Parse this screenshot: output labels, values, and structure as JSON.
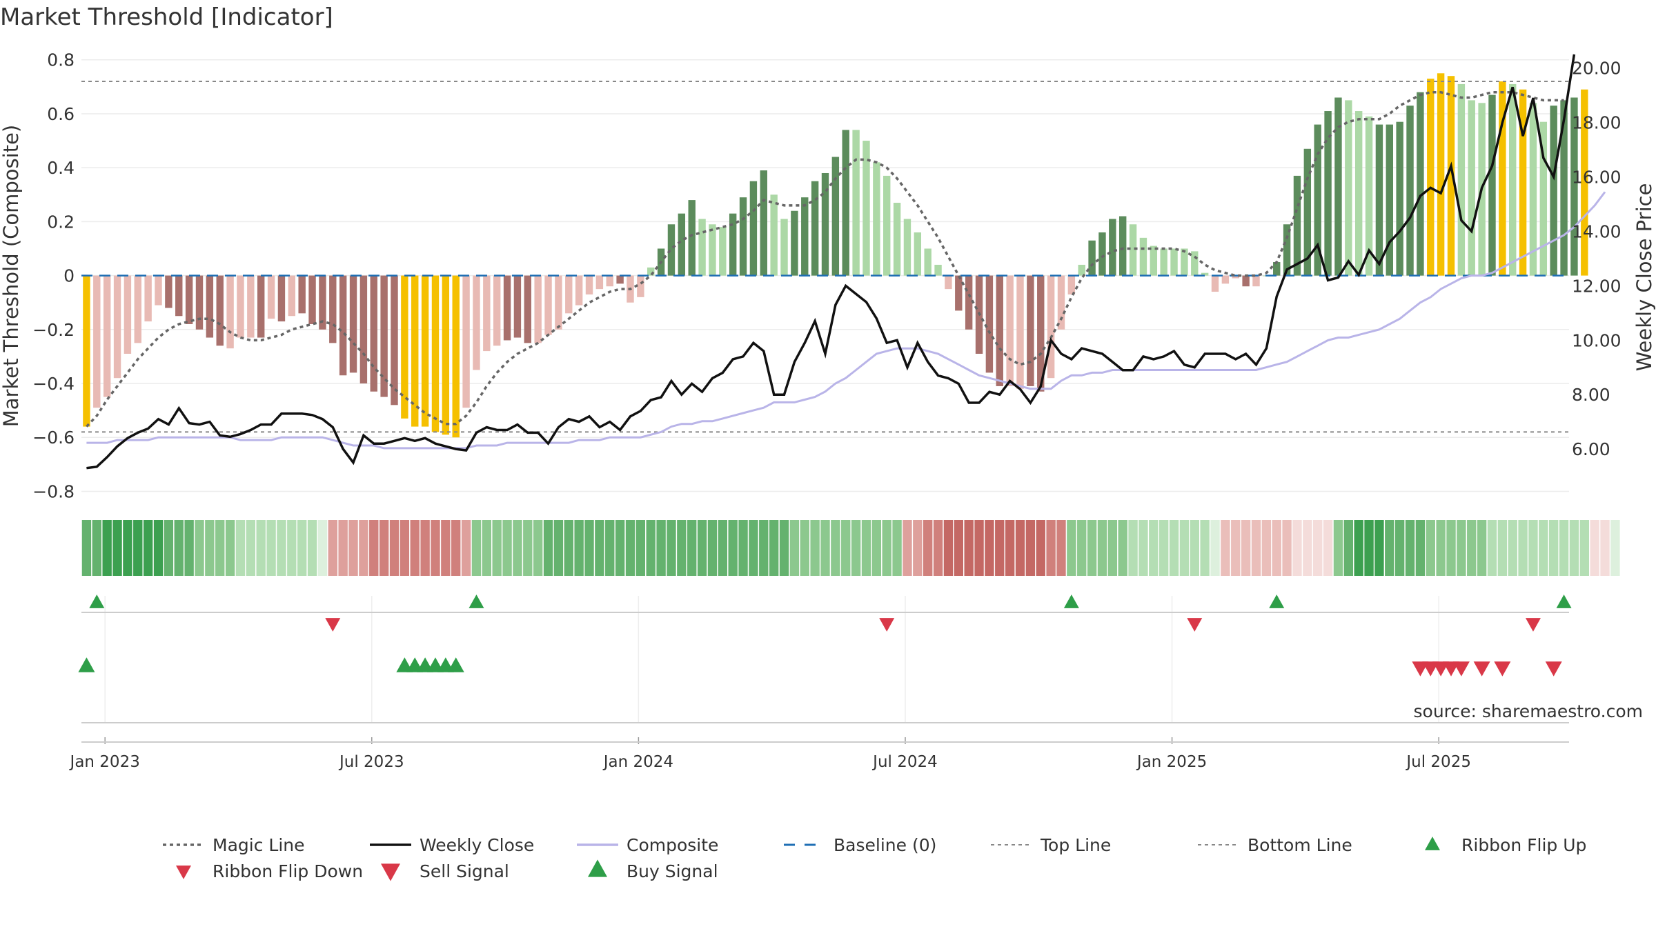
{
  "chart_data": {
    "type": "bar",
    "title": "Market Threshold [Indicator]",
    "ylabel_left": "Market Threshold (Composite)",
    "ylabel_right": "Weekly Close Price",
    "source_text": "source: sharemaestro.com",
    "ylim_left": [
      -0.85,
      0.83
    ],
    "ylim_right": [
      3.95,
      20.6
    ],
    "yticks_left": [
      {
        "v": 0.8,
        "label": "0.8"
      },
      {
        "v": 0.6,
        "label": "0.6"
      },
      {
        "v": 0.4,
        "label": "0.4"
      },
      {
        "v": 0.2,
        "label": "0.2"
      },
      {
        "v": 0,
        "label": "0"
      },
      {
        "v": -0.2,
        "label": "−0.2"
      },
      {
        "v": -0.4,
        "label": "−0.4"
      },
      {
        "v": -0.6,
        "label": "−0.6"
      },
      {
        "v": -0.8,
        "label": "−0.8"
      }
    ],
    "yticks_right": [
      {
        "v": 20,
        "label": "20.00"
      },
      {
        "v": 18,
        "label": "18.00"
      },
      {
        "v": 16,
        "label": "16.00"
      },
      {
        "v": 14,
        "label": "14.00"
      },
      {
        "v": 12,
        "label": "12.00"
      },
      {
        "v": 10,
        "label": "10.00"
      },
      {
        "v": 8,
        "label": "8.00"
      },
      {
        "v": 6,
        "label": "6.00"
      }
    ],
    "xticks": [
      {
        "i": 2,
        "label": "Jan 2023"
      },
      {
        "i": 28,
        "label": "Jul 2023"
      },
      {
        "i": 54,
        "label": "Jan 2024"
      },
      {
        "i": 80,
        "label": "Jul 2024"
      },
      {
        "i": 106,
        "label": "Jan 2025"
      },
      {
        "i": 132,
        "label": "Jul 2025"
      }
    ],
    "weeks": 145,
    "top_line": 0.72,
    "bottom_line": -0.58,
    "colors": {
      "gold": "#f5c000",
      "dark_green": "#5c8c5c",
      "light_green": "#acd8a6",
      "dark_red": "#a8706c",
      "light_red": "#e8bab4",
      "weekly_close": "#111111",
      "composite": "#b9b4e8",
      "magic": "#666666",
      "baseline": "#1f6fb4",
      "threshold": "#888888",
      "up_triangle": "#2e9e48",
      "down_triangle": "#d93848"
    },
    "composite_bars": [
      -0.56,
      -0.49,
      -0.45,
      -0.38,
      -0.29,
      -0.25,
      -0.17,
      -0.11,
      -0.12,
      -0.15,
      -0.18,
      -0.2,
      -0.23,
      -0.26,
      -0.27,
      -0.23,
      -0.23,
      -0.23,
      -0.16,
      -0.17,
      -0.15,
      -0.14,
      -0.18,
      -0.2,
      -0.25,
      -0.37,
      -0.36,
      -0.4,
      -0.43,
      -0.45,
      -0.48,
      -0.53,
      -0.56,
      -0.56,
      -0.58,
      -0.59,
      -0.6,
      -0.49,
      -0.35,
      -0.28,
      -0.26,
      -0.24,
      -0.23,
      -0.25,
      -0.25,
      -0.22,
      -0.2,
      -0.14,
      -0.11,
      -0.07,
      -0.05,
      -0.04,
      -0.03,
      -0.1,
      -0.08,
      0.03,
      0.1,
      0.19,
      0.23,
      0.28,
      0.21,
      0.19,
      0.18,
      0.23,
      0.29,
      0.35,
      0.39,
      0.3,
      0.21,
      0.24,
      0.29,
      0.35,
      0.38,
      0.44,
      0.54,
      0.54,
      0.5,
      0.42,
      0.37,
      0.27,
      0.21,
      0.16,
      0.1,
      0.04,
      -0.05,
      -0.13,
      -0.2,
      -0.29,
      -0.36,
      -0.41,
      -0.41,
      -0.42,
      -0.41,
      -0.43,
      -0.38,
      -0.2,
      -0.07,
      0.04,
      0.13,
      0.16,
      0.21,
      0.22,
      0.19,
      0.14,
      0.11,
      0.1,
      0.1,
      0.1,
      0.09,
      0.01,
      -0.06,
      -0.03,
      -0.01,
      -0.04,
      -0.04,
      0.0,
      0.05,
      0.19,
      0.37,
      0.47,
      0.56,
      0.61,
      0.66,
      0.65,
      0.61,
      0.59,
      0.56,
      0.56,
      0.57,
      0.63,
      0.68,
      0.73,
      0.75,
      0.74,
      0.71,
      0.65,
      0.64,
      0.67,
      0.72,
      0.71,
      0.69,
      0.64,
      0.57,
      0.63,
      0.65,
      0.66,
      0.69
    ],
    "bar_colors": [
      "gold",
      "light_red",
      "light_red",
      "light_red",
      "light_red",
      "light_red",
      "light_red",
      "light_red",
      "dark_red",
      "dark_red",
      "dark_red",
      "dark_red",
      "dark_red",
      "dark_red",
      "light_red",
      "light_red",
      "light_red",
      "dark_red",
      "light_red",
      "dark_red",
      "light_red",
      "dark_red",
      "dark_red",
      "dark_red",
      "dark_red",
      "dark_red",
      "dark_red",
      "dark_red",
      "dark_red",
      "dark_red",
      "dark_red",
      "gold",
      "gold",
      "gold",
      "gold",
      "gold",
      "gold",
      "light_red",
      "light_red",
      "light_red",
      "light_red",
      "dark_red",
      "dark_red",
      "dark_red",
      "light_red",
      "light_red",
      "light_red",
      "light_red",
      "light_red",
      "light_red",
      "light_red",
      "light_red",
      "dark_red",
      "light_red",
      "light_red",
      "light_green",
      "dark_green",
      "dark_green",
      "dark_green",
      "dark_green",
      "light_green",
      "light_green",
      "light_green",
      "dark_green",
      "dark_green",
      "dark_green",
      "dark_green",
      "light_green",
      "light_green",
      "dark_green",
      "dark_green",
      "dark_green",
      "dark_green",
      "dark_green",
      "dark_green",
      "light_green",
      "light_green",
      "light_green",
      "light_green",
      "light_green",
      "light_green",
      "light_green",
      "light_green",
      "light_green",
      "light_red",
      "dark_red",
      "dark_red",
      "dark_red",
      "dark_red",
      "dark_red",
      "light_red",
      "light_red",
      "dark_red",
      "dark_red",
      "light_red",
      "light_red",
      "light_red",
      "light_green",
      "dark_green",
      "dark_green",
      "dark_green",
      "dark_green",
      "light_green",
      "light_green",
      "light_green",
      "light_green",
      "light_green",
      "light_green",
      "light_green",
      "light_green",
      "light_red",
      "light_red",
      "light_red",
      "dark_red",
      "light_red",
      "light_green",
      "dark_green",
      "dark_green",
      "dark_green",
      "dark_green",
      "dark_green",
      "dark_green",
      "dark_green",
      "light_green",
      "light_green",
      "light_green",
      "dark_green",
      "dark_green",
      "dark_green",
      "dark_green",
      "dark_green",
      "gold",
      "gold",
      "gold",
      "light_green",
      "light_green",
      "light_green",
      "dark_green",
      "gold",
      "light_green",
      "gold",
      "light_green",
      "light_green",
      "dark_green",
      "dark_green",
      "dark_green",
      "gold"
    ],
    "weekly_close": [
      5.3,
      5.35,
      5.7,
      6.1,
      6.4,
      6.6,
      6.75,
      7.1,
      6.9,
      7.5,
      6.95,
      6.9,
      7.0,
      6.5,
      6.45,
      6.55,
      6.7,
      6.9,
      6.9,
      7.3,
      7.3,
      7.3,
      7.25,
      7.1,
      6.8,
      6.0,
      5.5,
      6.5,
      6.2,
      6.2,
      6.3,
      6.4,
      6.3,
      6.4,
      6.2,
      6.1,
      6.0,
      5.95,
      6.6,
      6.8,
      6.7,
      6.7,
      6.9,
      6.6,
      6.6,
      6.2,
      6.8,
      7.1,
      7.0,
      7.2,
      6.8,
      7.0,
      6.7,
      7.2,
      7.4,
      7.8,
      7.9,
      8.5,
      8.0,
      8.4,
      8.1,
      8.6,
      8.8,
      9.3,
      9.4,
      9.9,
      9.6,
      8.0,
      8.0,
      9.2,
      9.9,
      10.7,
      9.5,
      11.3,
      12.0,
      11.7,
      11.4,
      10.8,
      9.9,
      10.0,
      9.0,
      9.9,
      9.2,
      8.7,
      8.6,
      8.4,
      7.7,
      7.7,
      8.1,
      8.0,
      8.5,
      8.2,
      7.7,
      8.3,
      10.0,
      9.5,
      9.3,
      9.7,
      9.6,
      9.5,
      9.2,
      8.9,
      8.9,
      9.4,
      9.3,
      9.4,
      9.6,
      9.1,
      9.0,
      9.5,
      9.5,
      9.5,
      9.3,
      9.5,
      9.1,
      9.7,
      11.6,
      12.6,
      12.8,
      13.0,
      13.5,
      12.2,
      12.3,
      12.9,
      12.4,
      13.3,
      12.8,
      13.6,
      14.0,
      14.5,
      15.3,
      15.6,
      15.4,
      16.4,
      14.4,
      14.0,
      15.6,
      16.4,
      18.0,
      19.3,
      17.5,
      18.9,
      16.7,
      16.0,
      18.1,
      20.5
    ],
    "composite_line": [
      -0.62,
      -0.62,
      -0.62,
      -0.61,
      -0.61,
      -0.61,
      -0.61,
      -0.6,
      -0.6,
      -0.6,
      -0.6,
      -0.6,
      -0.6,
      -0.6,
      -0.6,
      -0.61,
      -0.61,
      -0.61,
      -0.61,
      -0.6,
      -0.6,
      -0.6,
      -0.6,
      -0.6,
      -0.61,
      -0.62,
      -0.63,
      -0.63,
      -0.63,
      -0.64,
      -0.64,
      -0.64,
      -0.64,
      -0.64,
      -0.64,
      -0.64,
      -0.64,
      -0.64,
      -0.63,
      -0.63,
      -0.63,
      -0.62,
      -0.62,
      -0.62,
      -0.62,
      -0.62,
      -0.62,
      -0.62,
      -0.61,
      -0.61,
      -0.61,
      -0.6,
      -0.6,
      -0.6,
      -0.6,
      -0.59,
      -0.58,
      -0.56,
      -0.55,
      -0.55,
      -0.54,
      -0.54,
      -0.53,
      -0.52,
      -0.51,
      -0.5,
      -0.49,
      -0.47,
      -0.47,
      -0.47,
      -0.46,
      -0.45,
      -0.43,
      -0.4,
      -0.38,
      -0.35,
      -0.32,
      -0.29,
      -0.28,
      -0.27,
      -0.27,
      -0.27,
      -0.28,
      -0.29,
      -0.31,
      -0.33,
      -0.35,
      -0.37,
      -0.38,
      -0.39,
      -0.4,
      -0.41,
      -0.42,
      -0.42,
      -0.42,
      -0.39,
      -0.37,
      -0.37,
      -0.36,
      -0.36,
      -0.35,
      -0.35,
      -0.35,
      -0.35,
      -0.35,
      -0.35,
      -0.35,
      -0.35,
      -0.35,
      -0.35,
      -0.35,
      -0.35,
      -0.35,
      -0.35,
      -0.35,
      -0.34,
      -0.33,
      -0.32,
      -0.3,
      -0.28,
      -0.26,
      -0.24,
      -0.23,
      -0.23,
      -0.22,
      -0.21,
      -0.2,
      -0.18,
      -0.16,
      -0.13,
      -0.1,
      -0.08,
      -0.05,
      -0.03,
      -0.01,
      0.0,
      0.0,
      0.01,
      0.03,
      0.05,
      0.07,
      0.09,
      0.11,
      0.13,
      0.15,
      0.18,
      0.22,
      0.26,
      0.31
    ],
    "magic_line": [
      -0.56,
      -0.52,
      -0.46,
      -0.41,
      -0.36,
      -0.31,
      -0.27,
      -0.23,
      -0.2,
      -0.18,
      -0.17,
      -0.16,
      -0.16,
      -0.18,
      -0.21,
      -0.23,
      -0.24,
      -0.24,
      -0.23,
      -0.22,
      -0.2,
      -0.19,
      -0.18,
      -0.17,
      -0.18,
      -0.21,
      -0.25,
      -0.29,
      -0.34,
      -0.38,
      -0.42,
      -0.45,
      -0.48,
      -0.51,
      -0.53,
      -0.55,
      -0.55,
      -0.52,
      -0.47,
      -0.41,
      -0.36,
      -0.32,
      -0.29,
      -0.27,
      -0.25,
      -0.22,
      -0.19,
      -0.16,
      -0.13,
      -0.1,
      -0.08,
      -0.06,
      -0.05,
      -0.05,
      -0.03,
      0.0,
      0.05,
      0.1,
      0.13,
      0.15,
      0.16,
      0.17,
      0.18,
      0.19,
      0.21,
      0.24,
      0.28,
      0.27,
      0.26,
      0.26,
      0.26,
      0.28,
      0.31,
      0.36,
      0.4,
      0.43,
      0.43,
      0.42,
      0.4,
      0.36,
      0.31,
      0.26,
      0.2,
      0.14,
      0.07,
      0.0,
      -0.07,
      -0.14,
      -0.21,
      -0.27,
      -0.31,
      -0.33,
      -0.32,
      -0.29,
      -0.23,
      -0.16,
      -0.08,
      -0.01,
      0.04,
      0.07,
      0.09,
      0.1,
      0.1,
      0.1,
      0.1,
      0.1,
      0.1,
      0.09,
      0.07,
      0.04,
      0.02,
      0.01,
      0.0,
      0.0,
      0.0,
      0.01,
      0.05,
      0.14,
      0.25,
      0.36,
      0.45,
      0.51,
      0.55,
      0.57,
      0.58,
      0.58,
      0.58,
      0.6,
      0.63,
      0.65,
      0.67,
      0.68,
      0.68,
      0.67,
      0.66,
      0.66,
      0.67,
      0.68,
      0.68,
      0.68,
      0.67,
      0.66,
      0.65,
      0.65,
      0.65
    ],
    "ribbon_values": [
      0.55,
      0.65,
      0.7,
      0.74,
      0.76,
      0.75,
      0.73,
      0.7,
      0.65,
      0.58,
      0.52,
      0.46,
      0.41,
      0.37,
      0.34,
      0.31,
      0.29,
      0.28,
      0.27,
      0.27,
      0.28,
      0.29,
      0.28,
      0,
      -0.35,
      -0.38,
      -0.42,
      -0.46,
      -0.5,
      -0.53,
      -0.55,
      -0.57,
      -0.58,
      -0.58,
      -0.57,
      -0.55,
      -0.52,
      -0.48,
      0.38,
      0.4,
      0.42,
      0.44,
      0.46,
      0.48,
      0.49,
      0.5,
      0.51,
      0.52,
      0.53,
      0.54,
      0.55,
      0.56,
      0.57,
      0.58,
      0.59,
      0.6,
      0.61,
      0.62,
      0.62,
      0.62,
      0.61,
      0.6,
      0.58,
      0.56,
      0.55,
      0.54,
      0.53,
      0.52,
      0.5,
      0.49,
      0.48,
      0.47,
      0.46,
      0.45,
      0.44,
      0.43,
      0.42,
      0.41,
      0.4,
      0.38,
      -0.42,
      -0.48,
      -0.55,
      -0.62,
      -0.68,
      -0.73,
      -0.77,
      -0.8,
      -0.82,
      -0.82,
      -0.8,
      -0.77,
      -0.73,
      -0.68,
      -0.6,
      -0.5,
      0.45,
      0.43,
      0.4,
      0.38,
      0.36,
      0.34,
      0.32,
      0.3,
      0.28,
      0.26,
      0.24,
      0.22,
      0.2,
      0.18,
      0.16,
      -0.3,
      -0.28,
      -0.26,
      -0.24,
      -0.22,
      -0.2,
      -0.18,
      -0.16,
      -0.14,
      -0.12,
      -0.1,
      0.4,
      0.55,
      0.68,
      0.72,
      0.7,
      0.65,
      0.6,
      0.55,
      0.5,
      0.46,
      0.43,
      0.4,
      0.38,
      0.36,
      0.34,
      0.32,
      0.3,
      0.28,
      0.26,
      0.25,
      0.24,
      0.23,
      0.22,
      0.21,
      0.2,
      -0.1,
      -0.12,
      0.15
    ],
    "ribbon_flip_up": [
      1,
      38,
      96,
      116,
      144
    ],
    "ribbon_flip_down": [
      24,
      78,
      108,
      141
    ],
    "buy_signal": [
      0,
      31,
      32,
      33,
      34,
      35,
      36
    ],
    "sell_signal": [
      130,
      131,
      132,
      133,
      134,
      136,
      138,
      143
    ],
    "legend": [
      {
        "key": "magic",
        "label": "Magic Line",
        "style": "dotted-dark"
      },
      {
        "key": "weekly_close",
        "label": "Weekly Close",
        "style": "solid-black"
      },
      {
        "key": "composite",
        "label": "Composite",
        "style": "solid-lavender"
      },
      {
        "key": "baseline",
        "label": "Baseline (0)",
        "style": "dashed-blue"
      },
      {
        "key": "top",
        "label": "Top Line",
        "style": "dotted-grey"
      },
      {
        "key": "bottom",
        "label": "Bottom Line",
        "style": "dotted-grey"
      },
      {
        "key": "flip_up",
        "label": "Ribbon Flip Up",
        "style": "tri-up-small"
      },
      {
        "key": "flip_down",
        "label": "Ribbon Flip Down",
        "style": "tri-down-small"
      },
      {
        "key": "sell",
        "label": "Sell Signal",
        "style": "tri-down-large"
      },
      {
        "key": "buy",
        "label": "Buy Signal",
        "style": "tri-up-large"
      }
    ]
  }
}
